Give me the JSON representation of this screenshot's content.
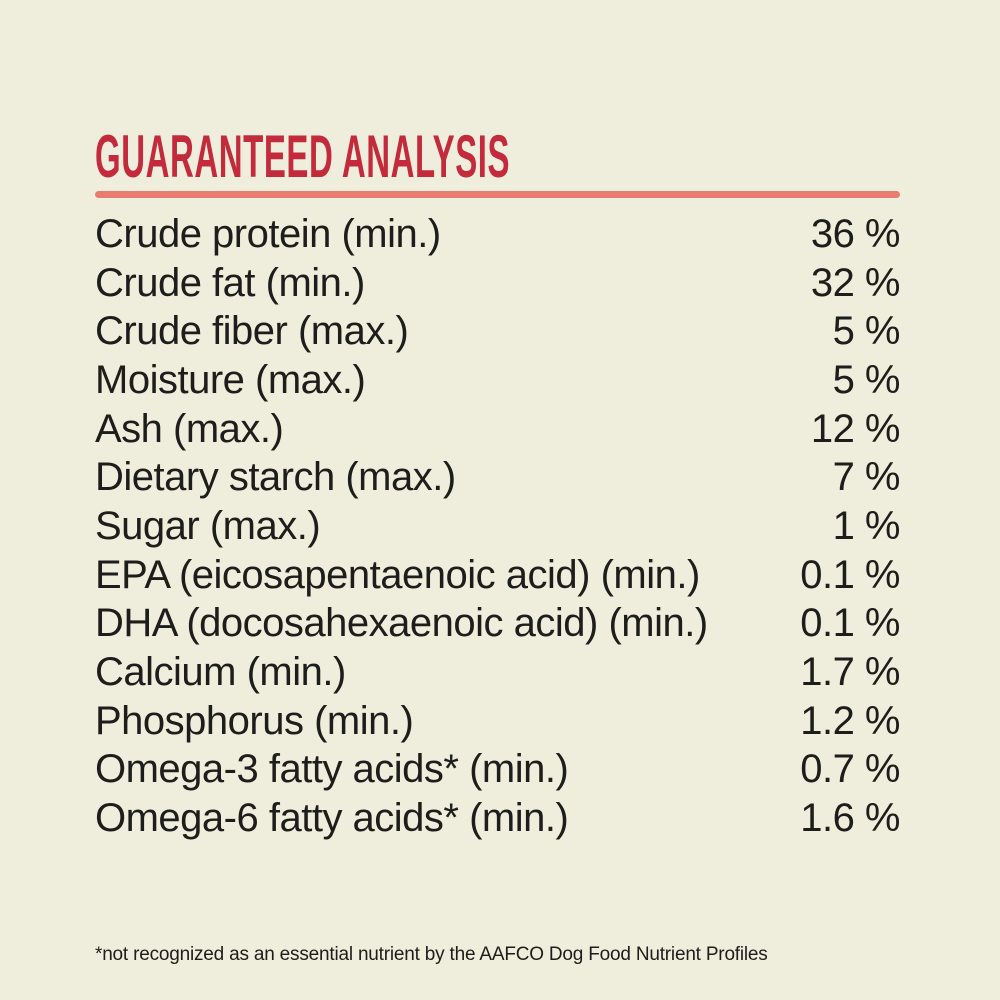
{
  "colors": {
    "background": "#EFEDDB",
    "heading_red": "#C32B3C",
    "divider_salmon": "#E87C6F",
    "text_ink": "#1D1D1B"
  },
  "header": {
    "title": "GUARANTEED ANALYSIS"
  },
  "table": {
    "rows": [
      {
        "label": "Crude protein (min.)",
        "value": "36 %"
      },
      {
        "label": "Crude fat (min.)",
        "value": "32 %"
      },
      {
        "label": "Crude fiber (max.)",
        "value": "5 %"
      },
      {
        "label": "Moisture (max.)",
        "value": "5 %"
      },
      {
        "label": "Ash (max.)",
        "value": "12 %"
      },
      {
        "label": "Dietary starch (max.)",
        "value": "7 %"
      },
      {
        "label": "Sugar (max.)",
        "value": "1 %"
      },
      {
        "label": "EPA (eicosapentaenoic acid) (min.)",
        "value": "0.1 %"
      },
      {
        "label": "DHA (docosahexaenoic acid) (min.)",
        "value": "0.1 %"
      },
      {
        "label": "Calcium (min.)",
        "value": "1.7 %"
      },
      {
        "label": "Phosphorus (min.)",
        "value": "1.2 %"
      },
      {
        "label": "Omega-3 fatty acids* (min.)",
        "value": "0.7 %"
      },
      {
        "label": "Omega-6 fatty acids* (min.)",
        "value": "1.6 %"
      }
    ]
  },
  "footnote": {
    "text": "*not recognized as an essential nutrient by the AAFCO Dog Food Nutrient Profiles"
  }
}
